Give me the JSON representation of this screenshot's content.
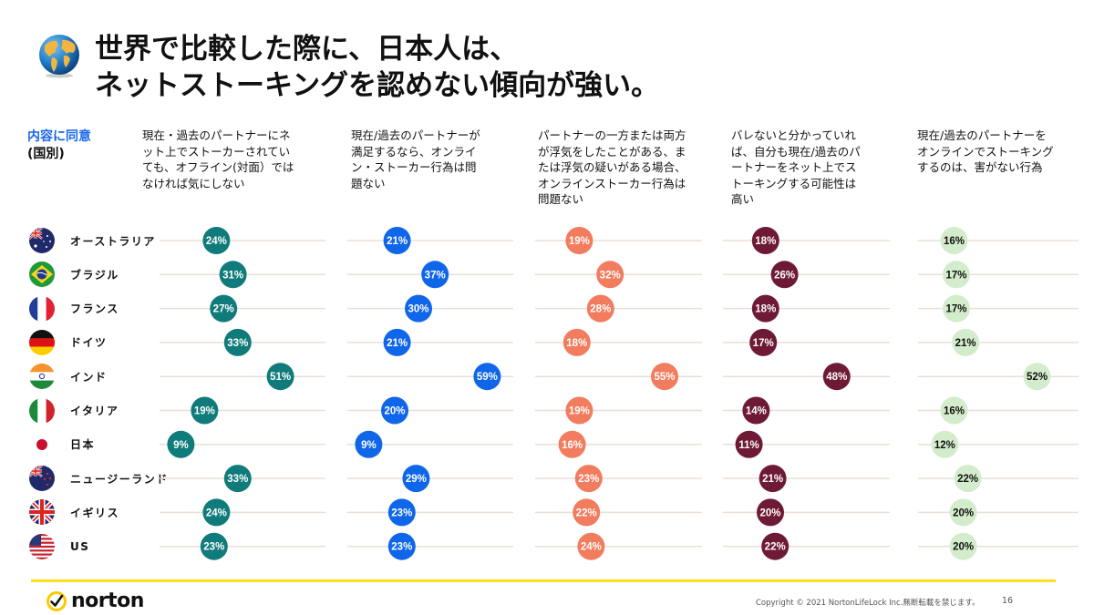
{
  "header": {
    "title_line1": "世界で比較した際に、日本人は、",
    "title_line2": "ネットストーキングを認めない傾向が強い。",
    "icon": "globe-icon"
  },
  "legend": {
    "line1": "内容に同意",
    "line2": "(国別)"
  },
  "footer": {
    "logo_text": "norton",
    "copyright": "Copyright © 2021 NortonLifeLock Inc.無断転載を禁じます。",
    "page_number": "16",
    "accent_color": "#ffe01b"
  },
  "chart_data": {
    "type": "scatter",
    "subtype": "dot-strip",
    "title": "世界で比較した際に、日本人は、ネットストーキングを認めない傾向が強い。",
    "ylabel": "内容に同意 (国別)",
    "xlim": [
      0,
      70
    ],
    "grid": false,
    "value_unit": "%",
    "categories": [
      "オーストラリア",
      "ブラジル",
      "フランス",
      "ドイツ",
      "インド",
      "イタリア",
      "日本",
      "ニュージーランド",
      "イギリス",
      "US"
    ],
    "category_flags": [
      "flag-australia-icon",
      "flag-brazil-icon",
      "flag-france-icon",
      "flag-germany-icon",
      "flag-india-icon",
      "flag-italy-icon",
      "flag-japan-icon",
      "flag-new-zealand-icon",
      "flag-uk-icon",
      "flag-us-icon"
    ],
    "series": [
      {
        "name": "現在・過去のパートナーにネット上でストーカーされていても、オフライン(対面）ではなければ気にしない",
        "color": "#0f7b7a",
        "text_color": "#ffffff",
        "values": [
          24,
          31,
          27,
          33,
          51,
          19,
          9,
          33,
          24,
          23
        ]
      },
      {
        "name": "現在/過去のパートナーが満足するなら、オンライン・ストーカー行為は問題ない",
        "color": "#0f66e9",
        "text_color": "#ffffff",
        "values": [
          21,
          37,
          30,
          21,
          59,
          20,
          9,
          29,
          23,
          23
        ]
      },
      {
        "name": "パートナーの一方または両方が浮気をしたことがある、または浮気の疑いがある場合、オンラインストーカー行為は問題ない",
        "color": "#f27c5e",
        "text_color": "#ffffff",
        "values": [
          19,
          32,
          28,
          18,
          55,
          19,
          16,
          23,
          22,
          24
        ]
      },
      {
        "name": "バレないと分かっていれば、自分も現在/過去のパートナーをネット上でストーキングする可能性は高い",
        "color": "#6e1a35",
        "text_color": "#ffffff",
        "values": [
          18,
          26,
          18,
          17,
          48,
          14,
          11,
          21,
          20,
          22
        ]
      },
      {
        "name": "現在/過去のパートナーをオンラインでストーキングするのは、害がない行為",
        "color": "#d3eccb",
        "text_color": "#111111",
        "values": [
          16,
          17,
          17,
          21,
          52,
          16,
          12,
          22,
          20,
          20
        ]
      }
    ],
    "column_headers": [
      [
        "現在・過去のパートナーにネ",
        "ット上でストーカーされてい",
        "ても、オフライン(対面）では",
        "なければ気にしない"
      ],
      [
        "現在/過去のパートナーが",
        "満足するなら、オンライ",
        "ン・ストーカー行為は問",
        "題ない"
      ],
      [
        "パートナーの一方または両方",
        "が浮気をしたことがある、ま",
        "たは浮気の疑いがある場合、",
        "オンラインストーカー行為は",
        "問題ない"
      ],
      [
        "バレないと分かっていれ",
        "ば、自分も現在/過去のパ",
        "ートナーをネット上でス",
        "トーキングする可能性は",
        "高い"
      ],
      [
        "現在/過去のパートナーを",
        "オンラインでストーキング",
        "するのは、害がない行為"
      ]
    ],
    "track_color": "#e8e0d6"
  }
}
